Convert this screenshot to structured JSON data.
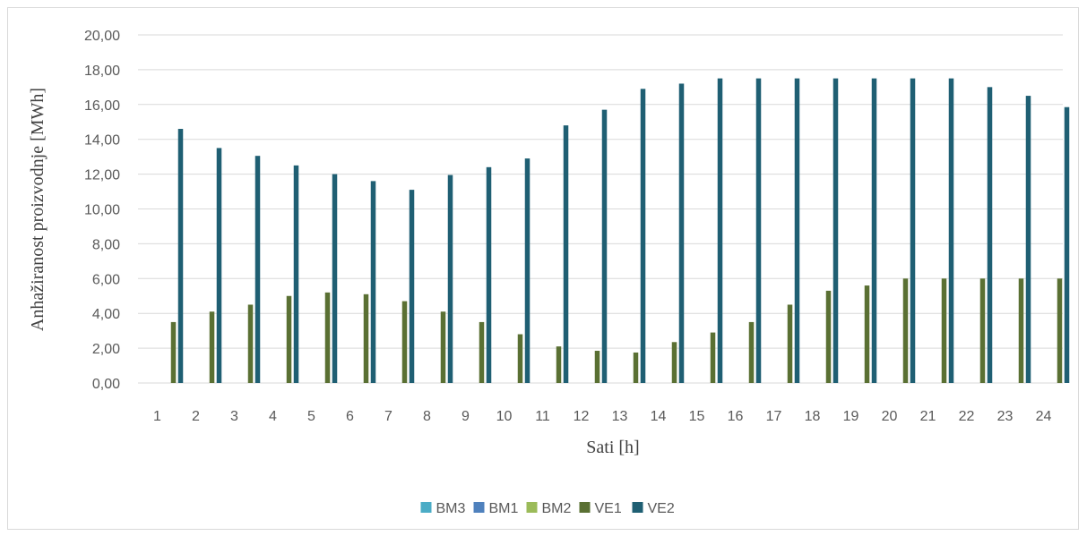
{
  "chart_data": {
    "type": "bar",
    "title": "",
    "xlabel": "Sati [h]",
    "ylabel": "Anhažiranost proizvodnje [MWh]",
    "ylim": [
      0,
      20
    ],
    "y_ticks": [
      "0,00",
      "2,00",
      "4,00",
      "6,00",
      "8,00",
      "10,00",
      "12,00",
      "14,00",
      "16,00",
      "18,00",
      "20,00"
    ],
    "categories": [
      "1",
      "2",
      "3",
      "4",
      "5",
      "6",
      "7",
      "8",
      "9",
      "10",
      "11",
      "12",
      "13",
      "14",
      "15",
      "16",
      "17",
      "18",
      "19",
      "20",
      "21",
      "22",
      "23",
      "24"
    ],
    "grid": true,
    "legend_position": "bottom",
    "series": [
      {
        "name": "BM3",
        "color": "#4bacc6",
        "values": [
          0,
          0,
          0,
          0,
          0,
          0,
          0,
          0,
          0,
          0,
          0,
          0,
          0,
          0,
          0,
          0,
          0,
          0,
          0,
          0,
          0,
          0,
          0,
          0
        ]
      },
      {
        "name": "BM1",
        "color": "#4f81bd",
        "values": [
          0,
          0,
          0,
          0,
          0,
          0,
          0,
          0,
          0,
          0,
          0,
          0,
          0,
          0,
          0,
          0,
          0,
          0,
          0,
          0,
          0,
          0,
          0,
          0
        ]
      },
      {
        "name": "BM2",
        "color": "#9bbb59",
        "values": [
          0,
          0,
          0,
          0,
          0,
          0,
          0,
          0,
          0,
          0,
          0,
          0,
          0,
          0,
          0,
          0,
          0,
          0,
          0,
          0,
          0,
          0,
          0,
          0
        ]
      },
      {
        "name": "VE1",
        "color": "#5a7033",
        "values": [
          3.5,
          4.1,
          4.5,
          5.0,
          5.2,
          5.1,
          4.7,
          4.1,
          3.5,
          2.8,
          2.1,
          1.85,
          1.75,
          2.35,
          2.9,
          3.5,
          4.5,
          5.3,
          5.6,
          6.0,
          6.0,
          6.0,
          6.0,
          6.0
        ]
      },
      {
        "name": "VE2",
        "color": "#1f5f73",
        "values": [
          14.6,
          13.5,
          13.05,
          12.5,
          12.0,
          11.6,
          11.1,
          11.95,
          12.4,
          12.9,
          14.8,
          15.7,
          16.9,
          17.2,
          17.5,
          17.5,
          17.5,
          17.5,
          17.5,
          17.5,
          17.5,
          17.0,
          16.5,
          15.85
        ]
      }
    ]
  }
}
